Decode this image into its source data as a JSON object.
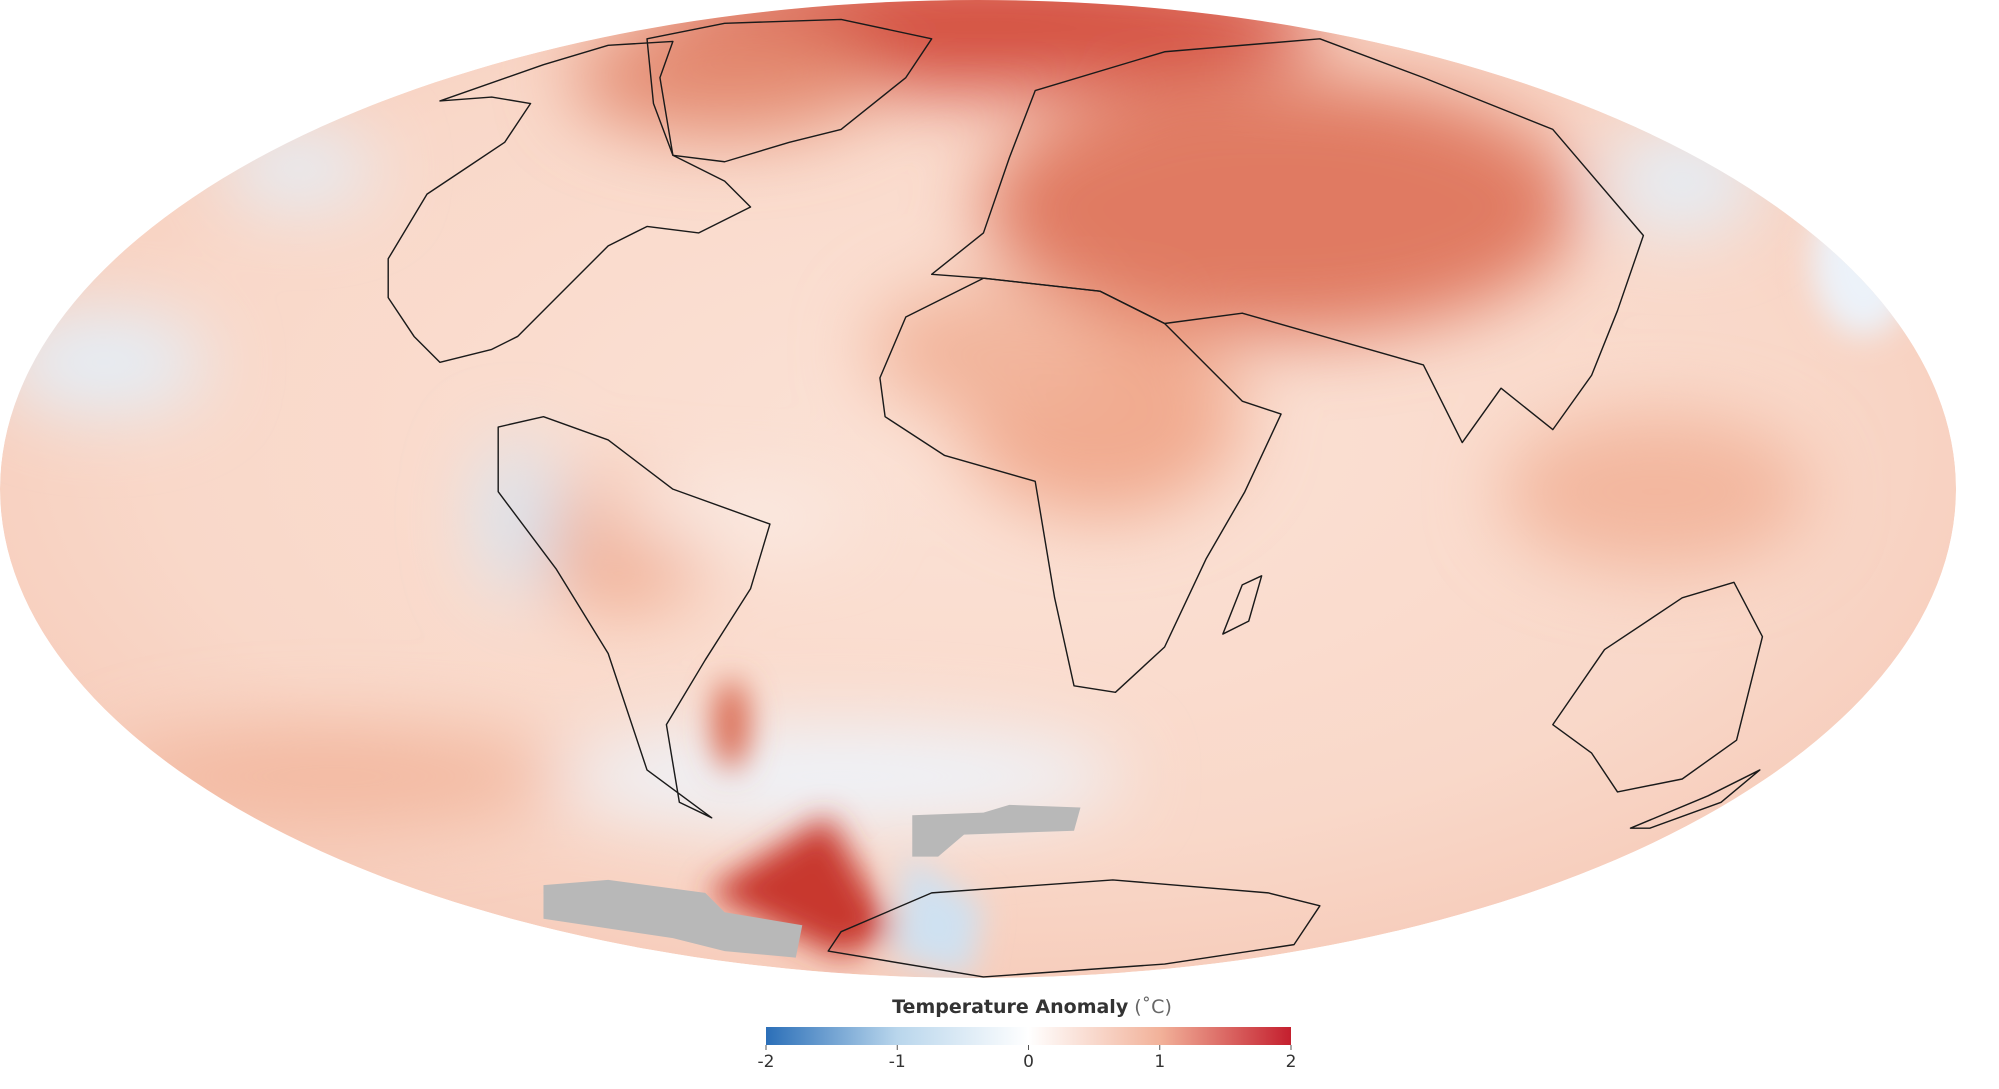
{
  "legend": {
    "title": "Temperature Anomaly",
    "unit": "(˚C)",
    "range": [
      -2,
      2
    ],
    "ticks": [
      -2,
      -1,
      0,
      1,
      2
    ],
    "colors": [
      "#2b6fb8",
      "#b9d6ec",
      "#ffffff",
      "#f2b29a",
      "#c41f2e"
    ]
  }
}
